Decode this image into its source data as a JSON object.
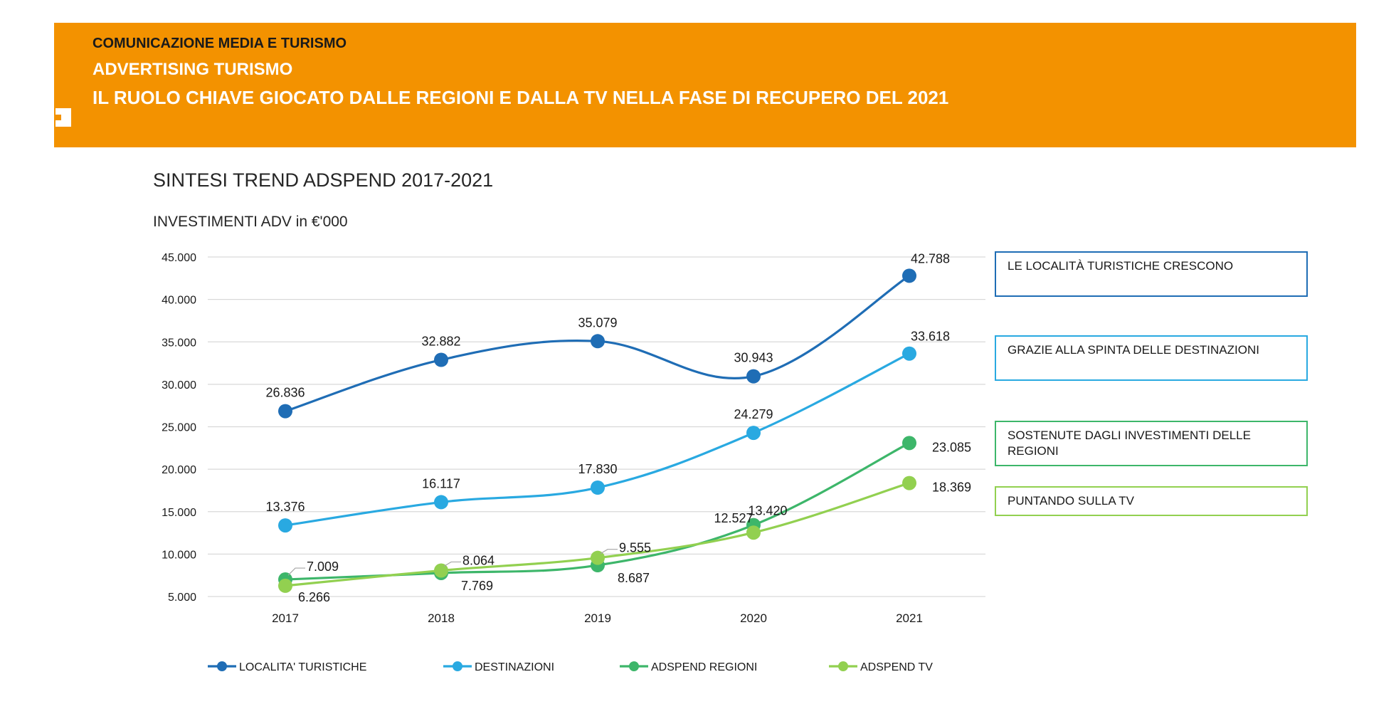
{
  "banner": {
    "line1": "COMUNICAZIONE  MEDIA E TURISMO",
    "line2": "ADVERTISING  TURISMO",
    "line3": "IL RUOLO CHIAVE  GIOCATO DALLE  REGIONI E DALLA  TV NELLA FASE  DI RECUPERO DEL 2021",
    "color": "#F39200"
  },
  "title": "SINTESI  TREND ADSPEND  2017-2021",
  "subtitle": "INVESTIMENTI ADV  in €'000",
  "notes": [
    {
      "text": "LE LOCALITÀ TURISTICHE CRESCONO",
      "color": "#1F6DB5"
    },
    {
      "text": "GRAZIE ALLA SPINTA DELLE DESTINAZIONI",
      "color": "#29A9E1"
    },
    {
      "text": "SOSTENUTE DAGLI INVESTIMENTI DELLE REGIONI",
      "color": "#3DB66A"
    },
    {
      "text": "PUNTANDO SULLA TV",
      "color": "#92D050"
    }
  ],
  "chart_data": {
    "type": "line",
    "title": "",
    "x": [
      "2017",
      "2018",
      "2019",
      "2020",
      "2021"
    ],
    "ylim": [
      5000,
      45000
    ],
    "yticks": [
      {
        "value": 5000,
        "label": "5.000"
      },
      {
        "value": 10000,
        "label": "10.000"
      },
      {
        "value": 15000,
        "label": "15.000"
      },
      {
        "value": 20000,
        "label": "20.000"
      },
      {
        "value": 25000,
        "label": "25.000"
      },
      {
        "value": 30000,
        "label": "30.000"
      },
      {
        "value": 35000,
        "label": "35.000"
      },
      {
        "value": 40000,
        "label": "40.000"
      },
      {
        "value": 45000,
        "label": "45.000"
      }
    ],
    "grid": true,
    "legend_position": "bottom",
    "series": [
      {
        "name": "LOCALITA' TURISTICHE",
        "color": "#1F6DB5",
        "values": [
          26836,
          32882,
          35079,
          30943,
          42788
        ],
        "labels": [
          "26.836",
          "32.882",
          "35.079",
          "30.943",
          "42.788"
        ]
      },
      {
        "name": "DESTINAZIONI",
        "color": "#29A9E1",
        "values": [
          13376,
          16117,
          17830,
          24279,
          33618
        ],
        "labels": [
          "13.376",
          "16.117",
          "17.830",
          "24.279",
          "33.618"
        ]
      },
      {
        "name": "ADSPEND REGIONI",
        "color": "#3DB66A",
        "values": [
          7009,
          7769,
          8687,
          13420,
          23085
        ],
        "labels": [
          "7.009",
          "7.769",
          "8.687",
          "13.420",
          "23.085"
        ]
      },
      {
        "name": "ADSPEND TV",
        "color": "#92D050",
        "values": [
          6266,
          8064,
          9555,
          12527,
          18369
        ],
        "labels": [
          "6.266",
          "8.064",
          "9.555",
          "12.527",
          "18.369"
        ]
      }
    ]
  }
}
